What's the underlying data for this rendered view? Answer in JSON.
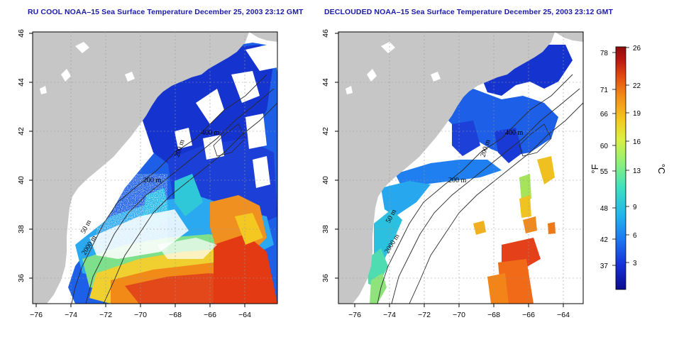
{
  "left_panel": {
    "title": "RU COOL NOAA–15 Sea Surface Temperature December 25, 2003 23:12 GMT",
    "contour_labels": [
      "200 m",
      "400 m",
      "200 m",
      "50 m",
      "2000 m"
    ]
  },
  "right_panel": {
    "title": "DECLOUDED NOAA–15 Sea Surface Temperature December 25, 2003 23:12 GMT",
    "contour_labels": [
      "200 m",
      "400 m",
      "200 m",
      "50 m",
      "2000 m"
    ]
  },
  "axes": {
    "x_ticks": [
      "−76",
      "−74",
      "−72",
      "−70",
      "−68",
      "−66",
      "−64"
    ],
    "y_ticks": [
      "46",
      "44",
      "42",
      "40",
      "38",
      "36"
    ]
  },
  "colorbar": {
    "fahrenheit_unit": "°F",
    "celsius_unit": "°C",
    "fahrenheit_ticks": [
      "78",
      "71",
      "66",
      "60",
      "55",
      "48",
      "42",
      "37"
    ],
    "celsius_ticks": [
      "26",
      "22",
      "19",
      "16",
      "13",
      "9",
      "6",
      "3"
    ],
    "colors": [
      "#0b0c8c",
      "#1630d8",
      "#1d74f0",
      "#22b2ee",
      "#3ee0c0",
      "#8cf07a",
      "#dcf040",
      "#f4c81e",
      "#f28a18",
      "#e24a10",
      "#b81410",
      "#8c0c0c"
    ]
  },
  "colors": {
    "land": "#c6c6c6",
    "ocean_cloud": "#ffffff",
    "title": "#1a1aa8"
  }
}
